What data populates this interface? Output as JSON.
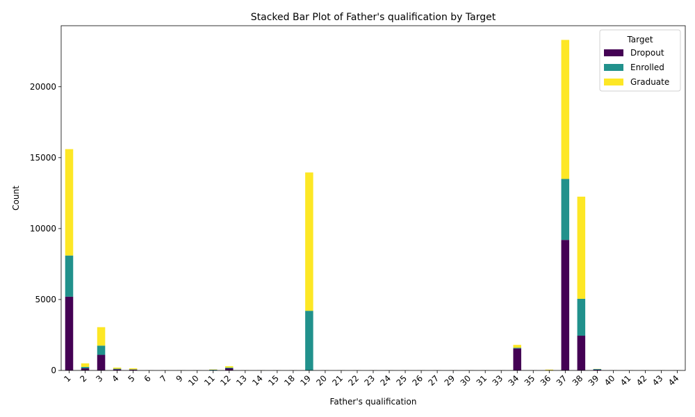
{
  "chart_data": {
    "type": "bar",
    "stacked": true,
    "title": "Stacked Bar Plot of Father's qualification by Target",
    "xlabel": "Father's qualification",
    "ylabel": "Count",
    "ylim": [
      0,
      24300
    ],
    "yticks": [
      0,
      5000,
      10000,
      15000,
      20000
    ],
    "grid": false,
    "legend": {
      "title": "Target",
      "placement": "top-right"
    },
    "categories": [
      "1",
      "2",
      "3",
      "4",
      "5",
      "6",
      "7",
      "9",
      "10",
      "11",
      "12",
      "13",
      "14",
      "15",
      "18",
      "19",
      "20",
      "21",
      "22",
      "23",
      "24",
      "25",
      "26",
      "27",
      "29",
      "30",
      "31",
      "33",
      "34",
      "35",
      "36",
      "37",
      "38",
      "39",
      "40",
      "41",
      "42",
      "43",
      "44"
    ],
    "series": [
      {
        "name": "Dropout",
        "color": "#440154",
        "values": [
          5200,
          150,
          1100,
          80,
          60,
          5,
          5,
          5,
          5,
          20,
          150,
          5,
          5,
          5,
          5,
          5,
          5,
          5,
          5,
          5,
          5,
          5,
          5,
          5,
          5,
          5,
          5,
          5,
          1550,
          5,
          5,
          9200,
          2450,
          60,
          5,
          5,
          5,
          5,
          5
        ]
      },
      {
        "name": "Enrolled",
        "color": "#21918c",
        "values": [
          2900,
          100,
          650,
          40,
          20,
          3,
          3,
          3,
          3,
          30,
          50,
          3,
          3,
          3,
          3,
          4200,
          3,
          3,
          3,
          3,
          3,
          3,
          3,
          3,
          3,
          3,
          3,
          3,
          50,
          3,
          3,
          4300,
          2600,
          40,
          3,
          3,
          3,
          3,
          3
        ]
      },
      {
        "name": "Graduate",
        "color": "#fde725",
        "values": [
          7500,
          250,
          1300,
          80,
          70,
          5,
          5,
          5,
          5,
          20,
          100,
          5,
          5,
          5,
          5,
          9750,
          5,
          5,
          5,
          5,
          5,
          5,
          5,
          5,
          5,
          5,
          5,
          5,
          200,
          5,
          50,
          9800,
          7200,
          10,
          5,
          5,
          5,
          5,
          5
        ]
      }
    ]
  }
}
